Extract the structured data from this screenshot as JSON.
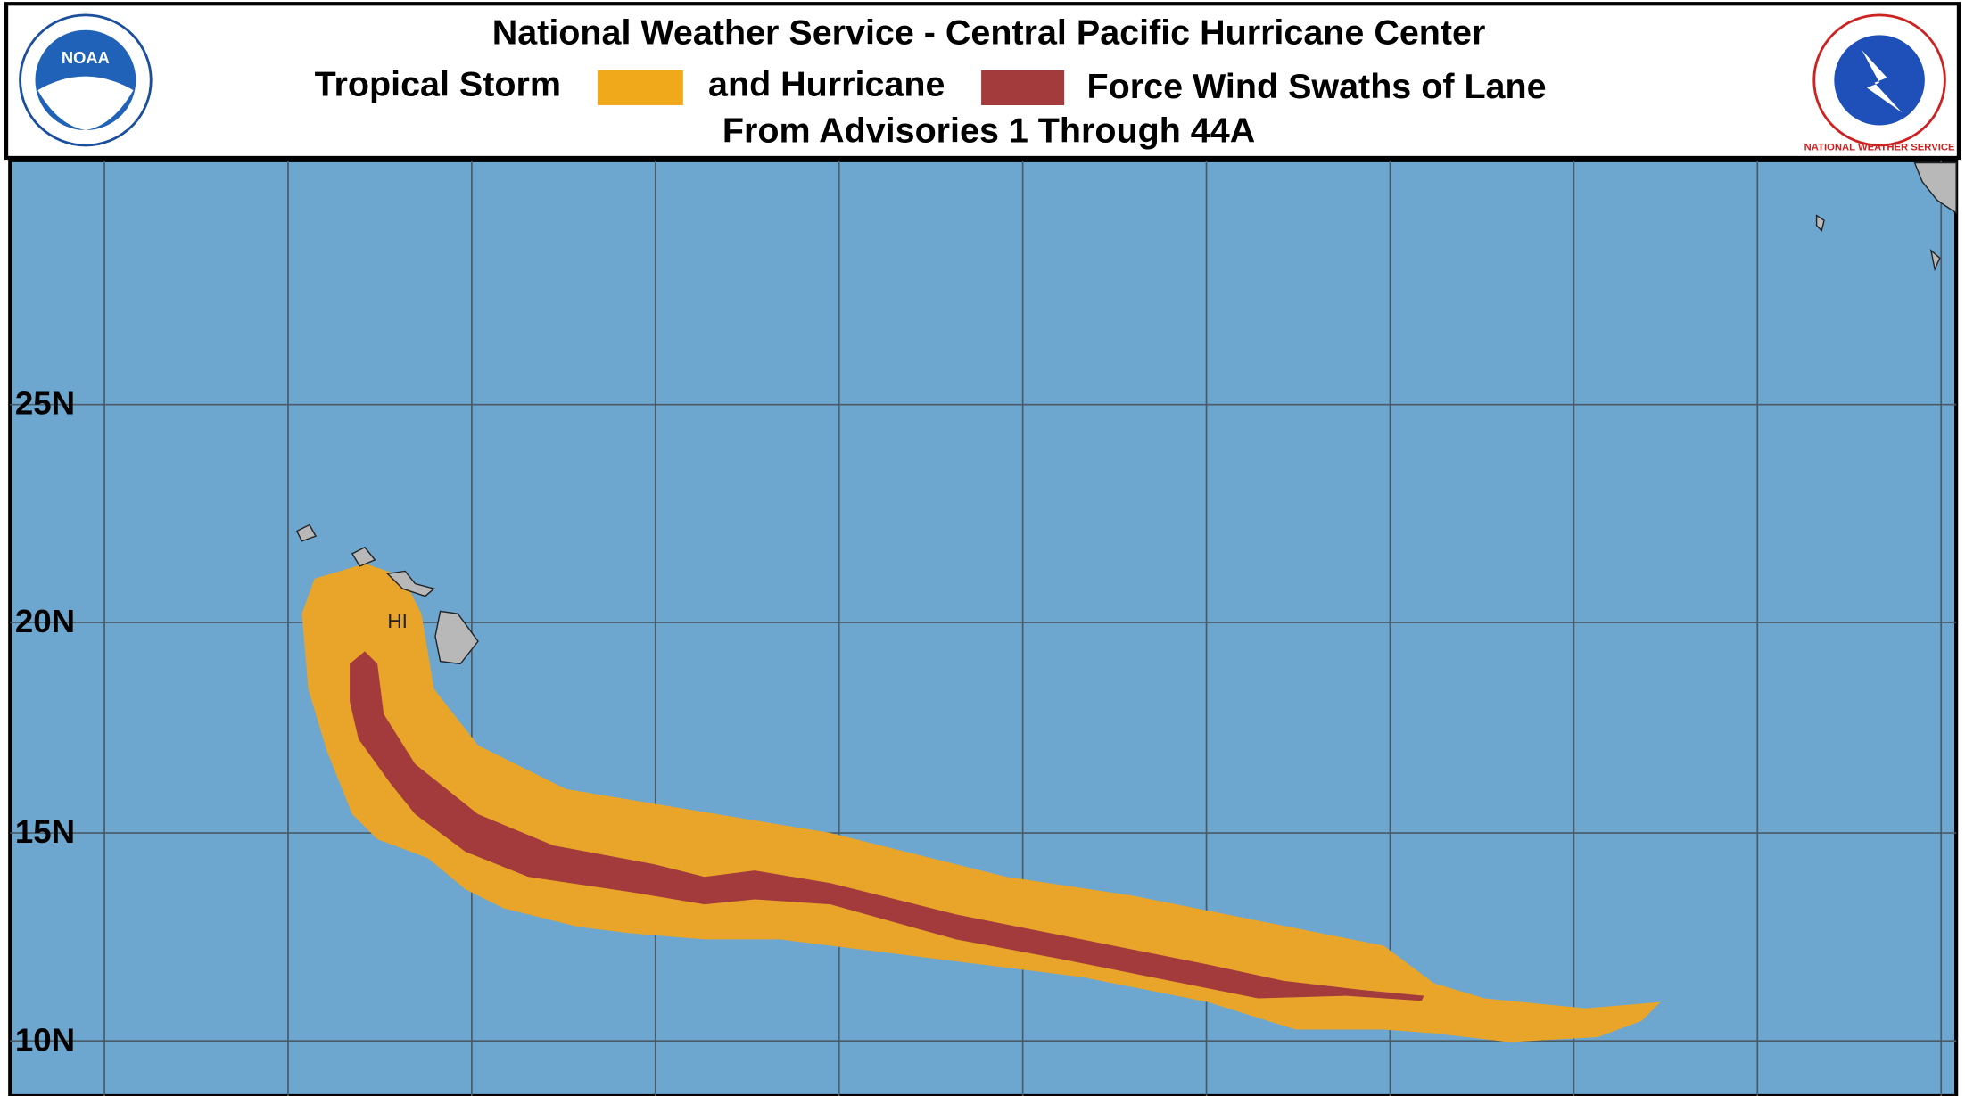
{
  "header": {
    "title": "National Weather Service - Central Pacific Hurricane Center",
    "legend": {
      "tropical_storm": "Tropical Storm",
      "hurricane": "and Hurricane",
      "suffix": "Force Wind Swaths of Lane"
    },
    "subtitle": "From Advisories 1 Through 44A",
    "left_logo": "NOAA",
    "right_logo": "NATIONAL WEATHER SERVICE"
  },
  "map": {
    "latitude_labels": [
      "25N",
      "20N",
      "15N",
      "10N"
    ],
    "state_label": "HI"
  }
}
